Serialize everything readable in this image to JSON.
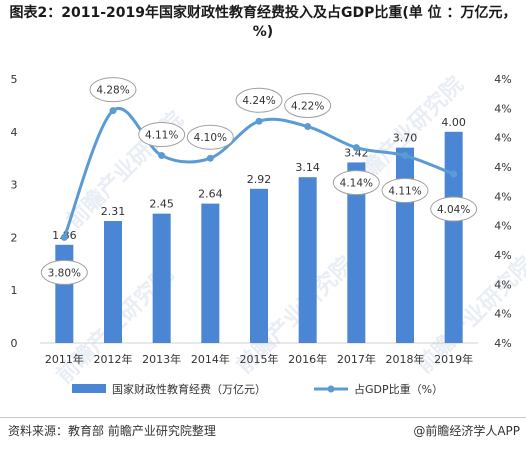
{
  "title": "图表2：2011-2019年国家财政性教育经费投入及占GDP比重(单 位 ：万亿元，%)",
  "watermark_text": "前瞻产业研究院",
  "source": "资料来源：教育部 前瞻产业研究院整理",
  "brand": "@前瞻经济学人APP",
  "colors": {
    "bar": "#4a86d4",
    "line": "#5b9bd5",
    "axis": "#d0d0d0",
    "text": "#333333"
  },
  "chart_data": {
    "type": "bar",
    "categories": [
      "2011年",
      "2012年",
      "2013年",
      "2014年",
      "2015年",
      "2016年",
      "2017年",
      "2018年",
      "2019年"
    ],
    "series": [
      {
        "name": "国家财政性教育经费（万亿元）",
        "type": "bar",
        "axis": "left",
        "values": [
          1.86,
          2.31,
          2.45,
          2.64,
          2.92,
          3.14,
          3.42,
          3.7,
          4.0
        ],
        "labels": [
          "1.86",
          "2.31",
          "2.45",
          "2.64",
          "2.92",
          "3.14",
          "3.42",
          "3.70",
          "4.00"
        ]
      },
      {
        "name": "占GDP比重（%）",
        "type": "line",
        "smooth": true,
        "axis": "right",
        "values": [
          3.8,
          4.28,
          4.11,
          4.1,
          4.24,
          4.22,
          4.14,
          4.11,
          4.04
        ],
        "labels": [
          "3.80%",
          "4.28%",
          "4.11%",
          "4.10%",
          "4.24%",
          "4.22%",
          "4.14%",
          "4.11%",
          "4.04%"
        ]
      }
    ],
    "left_axis": {
      "ticks": [
        "0",
        "1",
        "2",
        "3",
        "4",
        "5"
      ],
      "ylim": [
        0,
        5
      ]
    },
    "right_axis": {
      "ticks": [
        "4%",
        "4%",
        "4%",
        "4%",
        "4%",
        "4%",
        "4%",
        "4%",
        "4%",
        "4%"
      ],
      "ylim": [
        3.4,
        4.4
      ]
    },
    "grid": false,
    "legend_position": "bottom"
  }
}
